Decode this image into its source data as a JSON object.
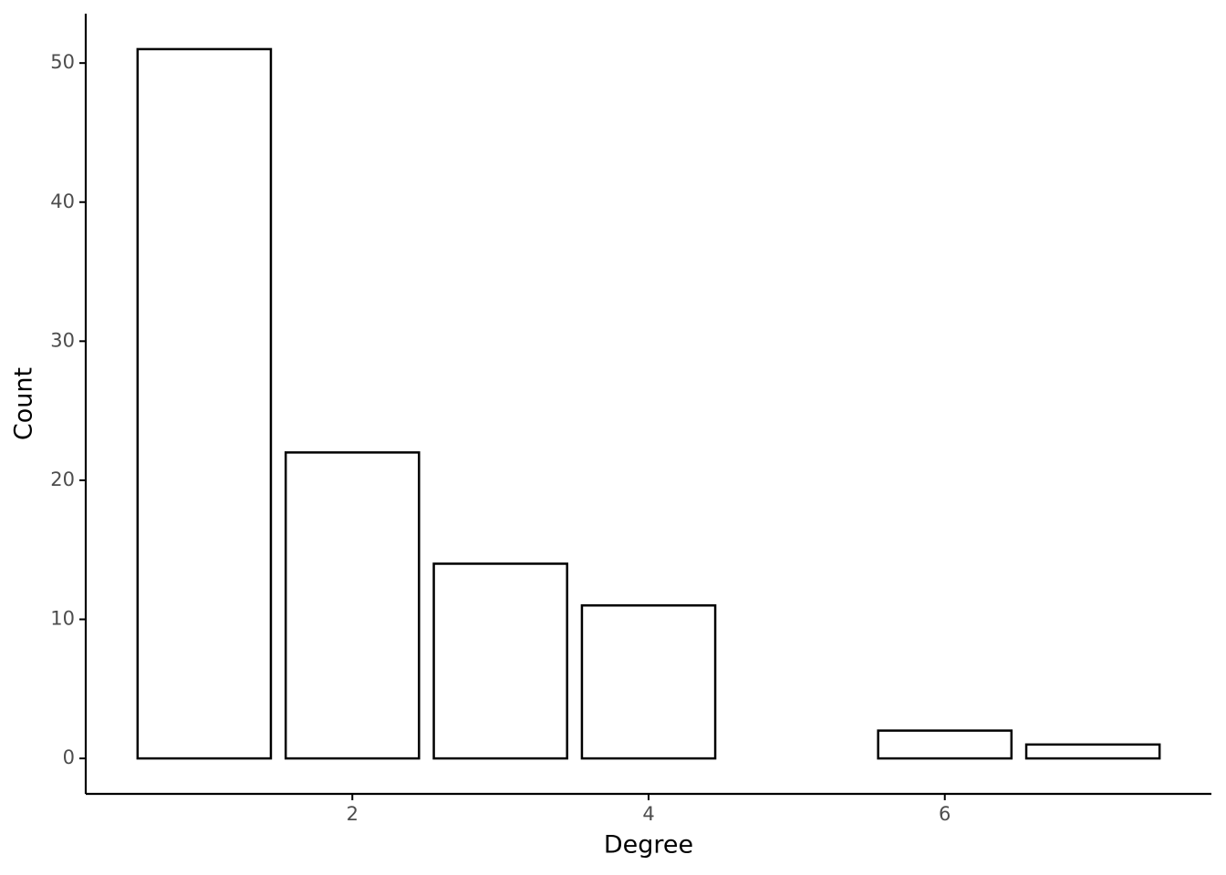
{
  "chart_data": {
    "type": "bar",
    "x_label": "Degree",
    "y_label": "Count",
    "x": [
      1,
      2,
      3,
      4,
      6,
      7
    ],
    "values": [
      51,
      22,
      14,
      11,
      2,
      1
    ],
    "color": "#ffffff",
    "xlim": [
      0.2,
      7.8
    ],
    "xticks": [
      2,
      4,
      6
    ],
    "ylim": [
      -2.55,
      53.55
    ],
    "yticks": [
      0,
      10,
      20,
      30,
      40,
      50
    ],
    "grid": false
  }
}
